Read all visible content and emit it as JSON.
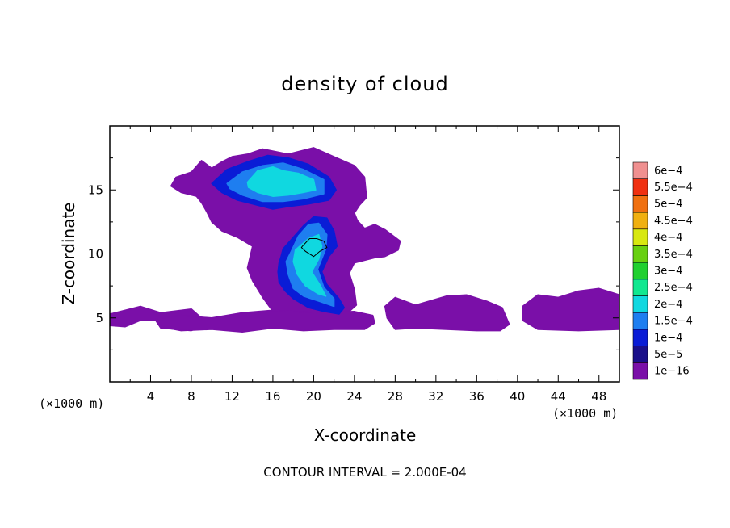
{
  "chart_data": {
    "type": "heatmap",
    "title": "density of cloud",
    "xlabel": "X-coordinate",
    "ylabel": "Z-coordinate",
    "x_unit": "(×1000 m)",
    "y_unit": "(×1000 m)",
    "xlim": [
      0,
      50
    ],
    "ylim": [
      0,
      20
    ],
    "x_ticks": [
      4,
      8,
      12,
      16,
      20,
      24,
      28,
      32,
      36,
      40,
      44,
      48
    ],
    "x_tick_labels": [
      "4",
      "8",
      "12",
      "16",
      "20",
      "24",
      "28",
      "32",
      "36",
      "40",
      "44",
      "48"
    ],
    "y_ticks": [
      5,
      10,
      15
    ],
    "y_tick_labels": [
      "5",
      "10",
      "15"
    ],
    "note": "CONTOUR INTERVAL = 2.000E-04",
    "colorbar": {
      "labels": [
        "1e−16",
        "5e−5",
        "1e−4",
        "1.5e−4",
        "2e−4",
        "2.5e−4",
        "3e−4",
        "3.5e−4",
        "4e−4",
        "4.5e−4",
        "5e−4",
        "5.5e−4",
        "6e−4"
      ],
      "values": [
        1e-16,
        5e-05,
        0.0001,
        0.00015,
        0.0002,
        0.00025,
        0.0003,
        0.00035,
        0.0004,
        0.00045,
        0.0005,
        0.00055,
        0.0006
      ],
      "colors": [
        "#7a0fa8",
        "#1a0f8a",
        "#0a1cd6",
        "#1e7ef0",
        "#10d8e0",
        "#10e890",
        "#20d030",
        "#68d010",
        "#d8e810",
        "#f0b010",
        "#f07010",
        "#f03010",
        "#f09090"
      ]
    },
    "regions": [
      {
        "level": "1e-16",
        "x": [
          6.0,
          6.5,
          8.0,
          9.0,
          10.0,
          11.0,
          12.0,
          13.5,
          15.0,
          17.5,
          20.0,
          22.0,
          24.0,
          25.0,
          25.2,
          24.5,
          24.0,
          24.3,
          25.0,
          26.0,
          27.0,
          28.5,
          28.3,
          27.0,
          26.0,
          24.0,
          23.5,
          24.0,
          24.2,
          23.5,
          22.0,
          21.0,
          19.0,
          18.0,
          16.0,
          15.0,
          14.0,
          13.5,
          14.0,
          12.5,
          11.0,
          10.0,
          9.5,
          9.0,
          8.5,
          7.0,
          6.0
        ],
        "y": [
          15.3,
          16.0,
          16.4,
          17.3,
          16.7,
          17.2,
          17.6,
          17.8,
          18.2,
          17.8,
          18.3,
          17.6,
          16.9,
          16.0,
          14.4,
          13.8,
          13.2,
          12.6,
          12.0,
          12.3,
          11.9,
          11.0,
          10.3,
          9.8,
          9.7,
          9.3,
          8.5,
          7.2,
          6.0,
          5.5,
          5.1,
          5.3,
          5.5,
          5.0,
          5.5,
          6.6,
          7.9,
          8.9,
          10.6,
          11.3,
          11.8,
          12.5,
          13.3,
          14.0,
          14.5,
          14.8,
          15.3
        ]
      },
      {
        "level": "1e-16",
        "x": [
          0.0,
          3.0,
          5.0,
          8.0,
          9.0,
          9.2,
          8.0,
          5.0,
          4.5,
          3.0,
          1.5,
          0.0
        ],
        "y": [
          5.3,
          5.9,
          5.4,
          5.7,
          5.0,
          4.4,
          4.0,
          4.2,
          4.8,
          4.8,
          4.3,
          4.4
        ]
      },
      {
        "level": "1e-16",
        "x": [
          4.5,
          7.0,
          10.0,
          13.0,
          16.0,
          20.0,
          24.0,
          25.8,
          26.0,
          25.0,
          22.0,
          19.0,
          16.0,
          13.0,
          10.0,
          7.0,
          5.0
        ],
        "y": [
          4.9,
          5.2,
          5.0,
          5.4,
          5.6,
          5.4,
          5.5,
          5.2,
          4.6,
          4.1,
          4.1,
          4.0,
          4.2,
          3.9,
          4.1,
          4.0,
          4.3
        ]
      },
      {
        "level": "1e-16",
        "x": [
          27.0,
          28.0,
          30.0,
          33.0,
          35.0,
          37.0,
          38.5,
          39.2,
          38.3,
          36.0,
          33.0,
          30.0,
          28.0,
          27.2
        ],
        "y": [
          5.9,
          6.6,
          6.0,
          6.7,
          6.8,
          6.3,
          5.8,
          4.5,
          4.0,
          4.0,
          4.1,
          4.2,
          4.1,
          5.0
        ]
      },
      {
        "level": "1e-16",
        "x": [
          40.5,
          42.0,
          44.0,
          46.0,
          48.0,
          50.0,
          50.0,
          46.0,
          42.0,
          40.5
        ],
        "y": [
          5.9,
          6.8,
          6.6,
          7.1,
          7.3,
          6.8,
          4.1,
          4.0,
          4.1,
          4.8
        ]
      },
      {
        "level": "1e-4",
        "x": [
          10.0,
          11.5,
          13.5,
          15.5,
          17.5,
          19.5,
          21.5,
          22.2,
          21.5,
          19.5,
          17.5,
          16.0,
          14.0,
          12.5,
          11.0,
          10.0
        ],
        "y": [
          15.5,
          16.6,
          17.2,
          17.7,
          17.5,
          17.0,
          16.0,
          15.0,
          14.2,
          13.9,
          13.7,
          13.5,
          13.9,
          14.2,
          14.8,
          15.5
        ]
      },
      {
        "level": "1e-4",
        "x": [
          17.0,
          18.0,
          19.0,
          20.0,
          21.3,
          22.0,
          22.3,
          21.5,
          20.8,
          21.3,
          22.5,
          23.0,
          22.5,
          21.0,
          19.5,
          18.0,
          17.2,
          16.6,
          16.5,
          16.6,
          16.8,
          17.0
        ],
        "y": [
          10.4,
          11.3,
          12.2,
          12.9,
          12.8,
          11.8,
          10.6,
          9.8,
          8.6,
          7.6,
          6.5,
          5.8,
          5.3,
          5.5,
          5.8,
          6.5,
          7.1,
          7.8,
          8.6,
          9.3,
          9.8,
          10.4
        ]
      },
      {
        "level": "1.5e-4",
        "x": [
          11.5,
          13.0,
          15.0,
          17.0,
          19.0,
          21.0,
          21.0,
          19.0,
          17.0,
          15.0,
          13.0,
          11.8
        ],
        "y": [
          15.5,
          16.4,
          16.9,
          17.1,
          16.6,
          15.8,
          14.7,
          14.3,
          14.1,
          14.1,
          14.6,
          15.1
        ]
      },
      {
        "level": "1.5e-4",
        "x": [
          17.8,
          18.5,
          19.5,
          20.5,
          21.3,
          21.2,
          20.4,
          21.0,
          22.0,
          22.0,
          20.5,
          19.0,
          18.0,
          17.5,
          17.3
        ],
        "y": [
          10.2,
          11.4,
          12.3,
          12.4,
          11.5,
          10.4,
          8.8,
          7.4,
          6.5,
          5.9,
          6.3,
          6.7,
          7.3,
          8.4,
          9.4
        ]
      },
      {
        "level": "2e-4",
        "x": [
          13.5,
          14.5,
          16.0,
          17.0,
          18.5,
          20.0,
          20.2,
          19.0,
          17.5,
          16.0,
          14.5,
          13.6
        ],
        "y": [
          15.6,
          16.5,
          16.8,
          16.5,
          16.3,
          15.8,
          15.0,
          14.8,
          14.6,
          14.5,
          14.8,
          15.2
        ]
      },
      {
        "level": "2e-4",
        "x": [
          18.2,
          19.5,
          20.5,
          20.8,
          20.5,
          19.8,
          20.6,
          21.2,
          20.4,
          19.2,
          18.4,
          18.0
        ],
        "y": [
          10.3,
          11.2,
          11.5,
          10.6,
          9.6,
          8.6,
          7.6,
          6.7,
          6.9,
          7.5,
          8.4,
          9.4
        ]
      }
    ],
    "contour": {
      "x": [
        18.9,
        19.6,
        20.3,
        21.0,
        21.3,
        20.6,
        20.0,
        19.2,
        18.8
      ],
      "y": [
        10.6,
        11.2,
        11.2,
        11.0,
        10.5,
        10.2,
        9.8,
        10.2,
        10.5
      ]
    }
  }
}
